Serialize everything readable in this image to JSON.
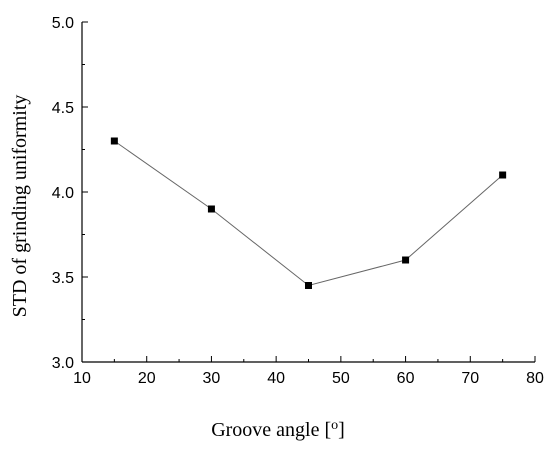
{
  "chart_data": {
    "type": "line",
    "title": "",
    "xlabel": "Groove angle [",
    "xlabel_sup": "o",
    "xlabel_end": "]",
    "ylabel": "STD of grinding uniformity",
    "xlim": [
      10,
      80
    ],
    "ylim": [
      3.0,
      5.0
    ],
    "x_ticks": [
      "10",
      "20",
      "30",
      "40",
      "50",
      "60",
      "70",
      "80"
    ],
    "y_ticks": [
      "3.0",
      "3.5",
      "4.0",
      "4.5",
      "5.0"
    ],
    "grid": false,
    "legend": "none",
    "series": [
      {
        "x": [
          15,
          30,
          45,
          60,
          75
        ],
        "y": [
          4.3,
          3.9,
          3.45,
          3.6,
          4.1
        ],
        "marker": "square",
        "color": "#000000",
        "line_color": "#666666"
      }
    ]
  }
}
